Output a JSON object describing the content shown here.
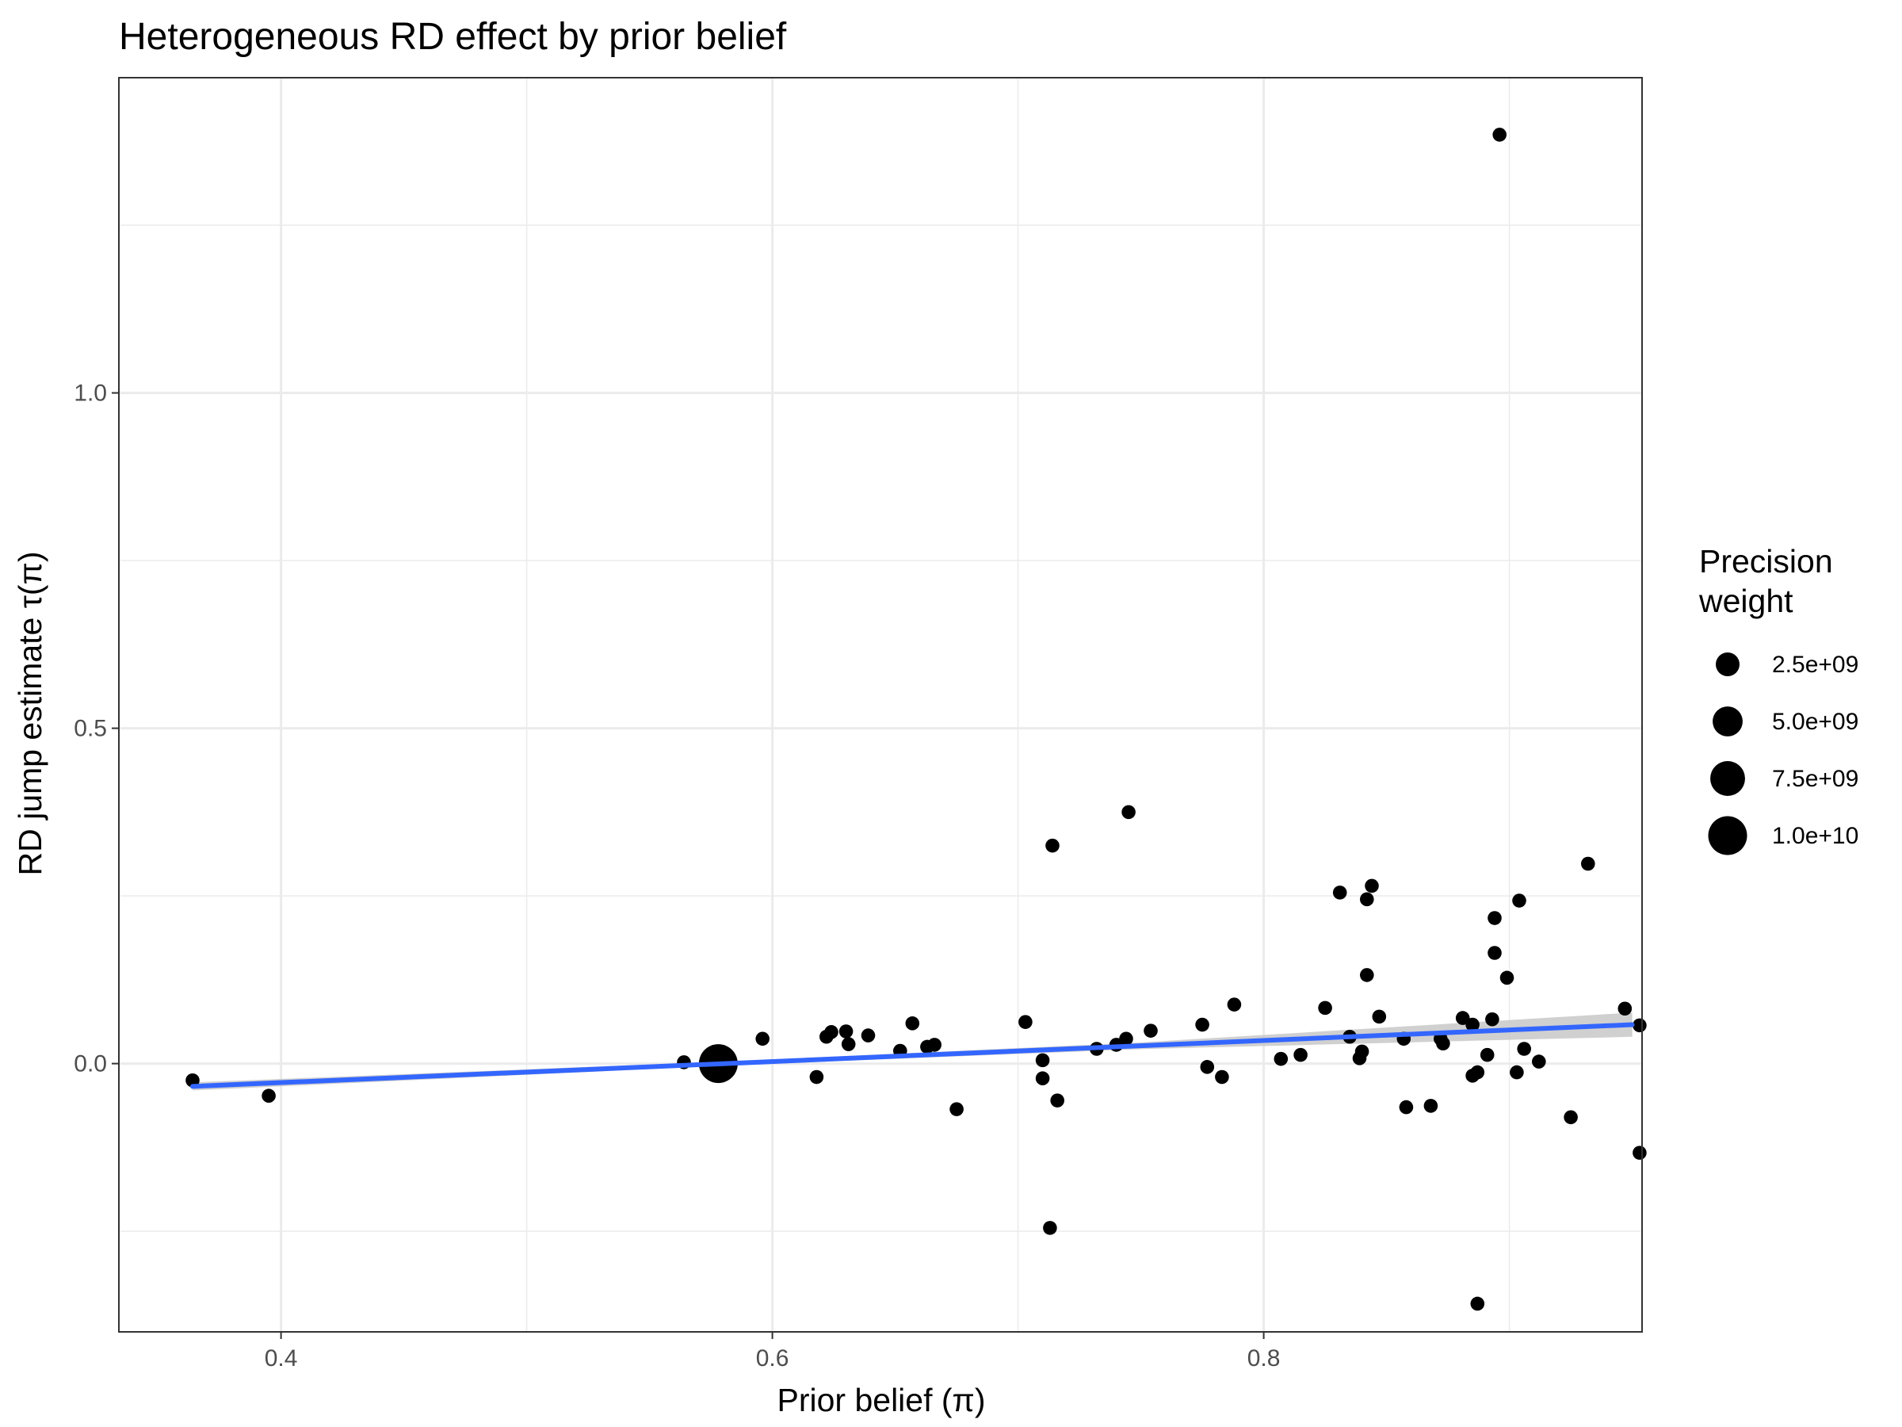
{
  "chart_data": {
    "type": "scatter",
    "title": "Heterogeneous RD effect by prior belief",
    "xlabel": "Prior belief (π)",
    "ylabel": "RD jump estimate τ(π)",
    "xlim": [
      0.334,
      0.954
    ],
    "ylim": [
      -0.4,
      1.47
    ],
    "x_ticks": [
      0.4,
      0.6,
      0.8
    ],
    "x_tick_labels": [
      "0.4",
      "0.6",
      "0.8"
    ],
    "y_ticks": [
      0.0,
      0.5,
      1.0
    ],
    "y_tick_labels": [
      "0.0",
      "0.5",
      "1.0"
    ],
    "x_minor_grid": [
      0.5,
      0.7,
      0.9
    ],
    "y_minor_grid": [
      -0.25,
      0.25,
      0.75,
      1.25
    ],
    "grid": true,
    "point_color": "#000000",
    "fit_line_color": "#3366FF",
    "ribbon_color": "#c8c8c8",
    "fit_line": {
      "x": [
        0.364,
        0.95
      ],
      "y": [
        -0.034,
        0.058
      ],
      "ci_halfwidth_at_x": [
        [
          0.364,
          0.006
        ],
        [
          0.58,
          0.003
        ],
        [
          0.75,
          0.005
        ],
        [
          0.95,
          0.018
        ]
      ]
    },
    "points": [
      {
        "x": 0.364,
        "y": -0.025,
        "w": 300000000.0
      },
      {
        "x": 0.395,
        "y": -0.048,
        "w": 300000000.0
      },
      {
        "x": 0.578,
        "y": 0.0,
        "w": 10000000000.0
      },
      {
        "x": 0.564,
        "y": 0.002,
        "w": 300000000.0
      },
      {
        "x": 0.596,
        "y": 0.037,
        "w": 300000000.0
      },
      {
        "x": 0.618,
        "y": -0.02,
        "w": 300000000.0
      },
      {
        "x": 0.622,
        "y": 0.04,
        "w": 300000000.0
      },
      {
        "x": 0.624,
        "y": 0.047,
        "w": 300000000.0
      },
      {
        "x": 0.63,
        "y": 0.048,
        "w": 300000000.0
      },
      {
        "x": 0.631,
        "y": 0.029,
        "w": 300000000.0
      },
      {
        "x": 0.639,
        "y": 0.042,
        "w": 300000000.0
      },
      {
        "x": 0.652,
        "y": 0.019,
        "w": 300000000.0
      },
      {
        "x": 0.657,
        "y": 0.06,
        "w": 300000000.0
      },
      {
        "x": 0.663,
        "y": 0.025,
        "w": 300000000.0
      },
      {
        "x": 0.666,
        "y": 0.028,
        "w": 300000000.0
      },
      {
        "x": 0.675,
        "y": -0.068,
        "w": 300000000.0
      },
      {
        "x": 0.703,
        "y": 0.062,
        "w": 300000000.0
      },
      {
        "x": 0.71,
        "y": 0.005,
        "w": 300000000.0
      },
      {
        "x": 0.71,
        "y": -0.022,
        "w": 300000000.0
      },
      {
        "x": 0.713,
        "y": -0.245,
        "w": 300000000.0
      },
      {
        "x": 0.714,
        "y": 0.325,
        "w": 300000000.0
      },
      {
        "x": 0.716,
        "y": -0.055,
        "w": 300000000.0
      },
      {
        "x": 0.732,
        "y": 0.022,
        "w": 300000000.0
      },
      {
        "x": 0.74,
        "y": 0.028,
        "w": 300000000.0
      },
      {
        "x": 0.744,
        "y": 0.037,
        "w": 300000000.0
      },
      {
        "x": 0.745,
        "y": 0.375,
        "w": 300000000.0
      },
      {
        "x": 0.754,
        "y": 0.049,
        "w": 300000000.0
      },
      {
        "x": 0.775,
        "y": 0.058,
        "w": 300000000.0
      },
      {
        "x": 0.777,
        "y": -0.005,
        "w": 300000000.0
      },
      {
        "x": 0.783,
        "y": -0.02,
        "w": 300000000.0
      },
      {
        "x": 0.788,
        "y": 0.088,
        "w": 300000000.0
      },
      {
        "x": 0.807,
        "y": 0.007,
        "w": 300000000.0
      },
      {
        "x": 0.815,
        "y": 0.013,
        "w": 300000000.0
      },
      {
        "x": 0.825,
        "y": 0.083,
        "w": 300000000.0
      },
      {
        "x": 0.831,
        "y": 0.255,
        "w": 300000000.0
      },
      {
        "x": 0.835,
        "y": 0.04,
        "w": 300000000.0
      },
      {
        "x": 0.839,
        "y": 0.008,
        "w": 300000000.0
      },
      {
        "x": 0.84,
        "y": 0.018,
        "w": 300000000.0
      },
      {
        "x": 0.842,
        "y": 0.245,
        "w": 300000000.0
      },
      {
        "x": 0.842,
        "y": 0.132,
        "w": 300000000.0
      },
      {
        "x": 0.844,
        "y": 0.265,
        "w": 300000000.0
      },
      {
        "x": 0.847,
        "y": 0.07,
        "w": 300000000.0
      },
      {
        "x": 0.857,
        "y": 0.037,
        "w": 300000000.0
      },
      {
        "x": 0.858,
        "y": -0.065,
        "w": 300000000.0
      },
      {
        "x": 0.868,
        "y": -0.063,
        "w": 300000000.0
      },
      {
        "x": 0.872,
        "y": 0.037,
        "w": 300000000.0
      },
      {
        "x": 0.873,
        "y": 0.03,
        "w": 300000000.0
      },
      {
        "x": 0.881,
        "y": 0.068,
        "w": 300000000.0
      },
      {
        "x": 0.885,
        "y": 0.058,
        "w": 300000000.0
      },
      {
        "x": 0.885,
        "y": -0.018,
        "w": 300000000.0
      },
      {
        "x": 0.887,
        "y": -0.013,
        "w": 300000000.0
      },
      {
        "x": 0.887,
        "y": -0.358,
        "w": 300000000.0
      },
      {
        "x": 0.891,
        "y": 0.013,
        "w": 300000000.0
      },
      {
        "x": 0.893,
        "y": 0.066,
        "w": 300000000.0
      },
      {
        "x": 0.894,
        "y": 0.217,
        "w": 300000000.0
      },
      {
        "x": 0.894,
        "y": 0.165,
        "w": 300000000.0
      },
      {
        "x": 0.896,
        "y": 1.385,
        "w": 300000000.0
      },
      {
        "x": 0.899,
        "y": 0.128,
        "w": 300000000.0
      },
      {
        "x": 0.903,
        "y": -0.013,
        "w": 300000000.0
      },
      {
        "x": 0.904,
        "y": 0.243,
        "w": 300000000.0
      },
      {
        "x": 0.906,
        "y": 0.022,
        "w": 300000000.0
      },
      {
        "x": 0.912,
        "y": 0.003,
        "w": 300000000.0
      },
      {
        "x": 0.925,
        "y": -0.08,
        "w": 300000000.0
      },
      {
        "x": 0.932,
        "y": 0.298,
        "w": 300000000.0
      },
      {
        "x": 0.947,
        "y": 0.082,
        "w": 300000000.0
      },
      {
        "x": 0.953,
        "y": 0.057,
        "w": 300000000.0
      },
      {
        "x": 0.953,
        "y": -0.133,
        "w": 300000000.0
      }
    ],
    "legend": {
      "title_line1": "Precision",
      "title_line2": "weight",
      "position": "right",
      "entries": [
        {
          "label": "2.5e+09",
          "w": 2500000000.0
        },
        {
          "label": "5.0e+09",
          "w": 5000000000.0
        },
        {
          "label": "7.5e+09",
          "w": 7500000000.0
        },
        {
          "label": "1.0e+10",
          "w": 10000000000.0
        }
      ]
    }
  }
}
